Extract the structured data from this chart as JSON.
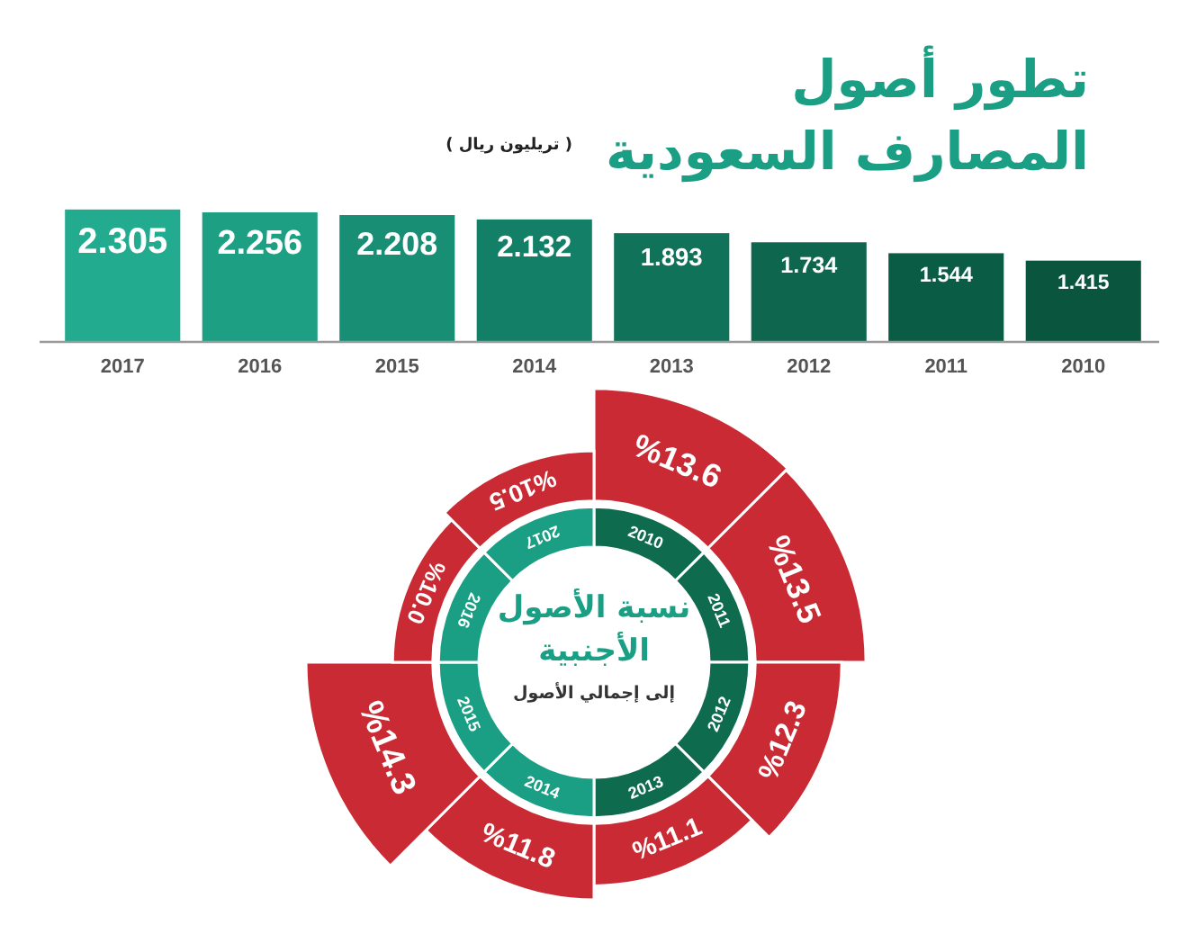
{
  "chart_data": [
    {
      "type": "bar",
      "title": "تطور أصول المصارف السعودية",
      "subtitle": "( تريليون ريال )",
      "categories": [
        "2017",
        "2016",
        "2015",
        "2014",
        "2013",
        "2012",
        "2011",
        "2010"
      ],
      "values": [
        2.305,
        2.256,
        2.208,
        2.132,
        1.893,
        1.734,
        1.544,
        1.415
      ],
      "colors": [
        "#22ab8e",
        "#1d9f83",
        "#188f75",
        "#137f66",
        "#107258",
        "#0d664d",
        "#0b5c44",
        "#0a553e"
      ],
      "data_labels": true
    },
    {
      "type": "other",
      "title": "نسبة الأصول الأجنبية",
      "subtitle": "إلى إجمالي الأصول",
      "categories": [
        "2010",
        "2011",
        "2012",
        "2013",
        "2014",
        "2015",
        "2016",
        "2017"
      ],
      "values": [
        13.6,
        13.5,
        12.3,
        11.1,
        11.8,
        14.3,
        10.0,
        10.5
      ],
      "color": "#c92a33",
      "value_labels": [
        "%13.6",
        "%13.5",
        "%12.3",
        "%11.1",
        "%11.8",
        "%14.3",
        "%10.0",
        "%10.5"
      ]
    }
  ]
}
